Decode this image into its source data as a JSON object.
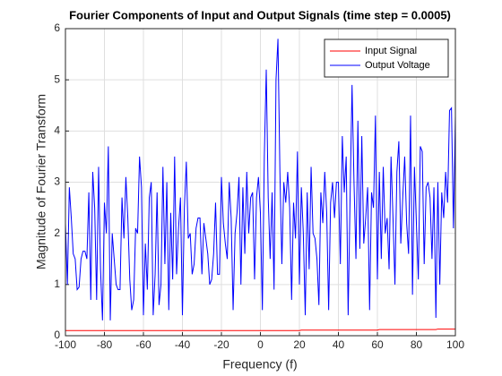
{
  "chart_data": {
    "type": "line",
    "title": "Fourier Components of Input and Output Signals (time step = 0.0005)",
    "xlabel": "Frequency (f)",
    "ylabel": "Magnitude of Fourier Transform",
    "x": [
      -100,
      -99,
      -98,
      -97,
      -96,
      -95,
      -94,
      -93,
      -92,
      -91,
      -90,
      -89,
      -88,
      -87,
      -86,
      -85,
      -84,
      -83,
      -82,
      -81,
      -80,
      -79,
      -78,
      -77,
      -76,
      -75,
      -74,
      -73,
      -72,
      -71,
      -70,
      -69,
      -68,
      -67,
      -66,
      -65,
      -64,
      -63,
      -62,
      -61,
      -60,
      -59,
      -58,
      -57,
      -56,
      -55,
      -54,
      -53,
      -52,
      -51,
      -50,
      -49,
      -48,
      -47,
      -46,
      -45,
      -44,
      -43,
      -42,
      -41,
      -40,
      -39,
      -38,
      -37,
      -36,
      -35,
      -34,
      -33,
      -32,
      -31,
      -30,
      -29,
      -28,
      -27,
      -26,
      -25,
      -24,
      -23,
      -22,
      -21,
      -20,
      -19,
      -18,
      -17,
      -16,
      -15,
      -14,
      -13,
      -12,
      -11,
      -10,
      -9,
      -8,
      -7,
      -6,
      -5,
      -4,
      -3,
      -2,
      -1,
      0,
      1,
      2,
      3,
      4,
      5,
      6,
      7,
      8,
      9,
      10,
      11,
      12,
      13,
      14,
      15,
      16,
      17,
      18,
      19,
      20,
      21,
      22,
      23,
      24,
      25,
      26,
      27,
      28,
      29,
      30,
      31,
      32,
      33,
      34,
      35,
      36,
      37,
      38,
      39,
      40,
      41,
      42,
      43,
      44,
      45,
      46,
      47,
      48,
      49,
      50,
      51,
      52,
      53,
      54,
      55,
      56,
      57,
      58,
      59,
      60,
      61,
      62,
      63,
      64,
      65,
      66,
      67,
      68,
      69,
      70,
      71,
      72,
      73,
      74,
      75,
      76,
      77,
      78,
      79,
      80,
      81,
      82,
      83,
      84,
      85,
      86,
      87,
      88,
      89,
      90,
      91,
      92,
      93,
      94,
      95,
      96,
      97,
      98,
      99,
      100
    ],
    "series": [
      {
        "name": "Input Signal",
        "color": "#ff0000",
        "values": [
          0.1,
          0.1,
          0.1,
          0.1,
          0.1,
          0.1,
          0.1,
          0.1,
          0.1,
          0.1,
          0.1,
          0.1,
          0.1,
          0.1,
          0.1,
          0.1,
          0.1,
          0.1,
          0.1,
          0.1,
          0.1,
          0.1,
          0.1,
          0.1,
          0.1,
          0.1,
          0.1,
          0.1,
          0.1,
          0.1,
          0.1,
          0.1,
          0.1,
          0.1,
          0.1,
          0.1,
          0.1,
          0.1,
          0.1,
          0.1,
          0.1,
          0.1,
          0.1,
          0.1,
          0.1,
          0.1,
          0.1,
          0.1,
          0.1,
          0.1,
          0.1,
          0.1,
          0.1,
          0.1,
          0.1,
          0.1,
          0.1,
          0.1,
          0.1,
          0.1,
          0.1,
          0.1,
          0.1,
          0.1,
          0.1,
          0.1,
          0.1,
          0.1,
          0.1,
          0.1,
          0.1,
          0.1,
          0.1,
          0.1,
          0.1,
          0.1,
          0.1,
          0.1,
          0.1,
          0.1,
          0.1,
          0.1,
          0.1,
          0.1,
          0.1,
          0.1,
          0.1,
          0.1,
          0.1,
          0.1,
          0.1,
          0.1,
          0.1,
          0.1,
          0.1,
          0.1,
          0.1,
          0.1,
          0.1,
          0.1,
          0.1,
          0.1,
          0.1,
          0.1,
          0.1,
          0.1,
          0.1,
          0.1,
          0.1,
          0.1,
          0.1,
          0.1,
          0.1,
          0.1,
          0.1,
          0.1,
          0.1,
          0.1,
          0.1,
          0.1,
          0.1,
          0.11,
          0.11,
          0.11,
          0.11,
          0.11,
          0.11,
          0.11,
          0.11,
          0.11,
          0.11,
          0.11,
          0.11,
          0.11,
          0.11,
          0.11,
          0.11,
          0.11,
          0.11,
          0.11,
          0.11,
          0.11,
          0.11,
          0.11,
          0.11,
          0.11,
          0.11,
          0.11,
          0.11,
          0.11,
          0.11,
          0.11,
          0.11,
          0.11,
          0.11,
          0.11,
          0.11,
          0.11,
          0.11,
          0.11,
          0.11,
          0.12,
          0.12,
          0.12,
          0.12,
          0.12,
          0.12,
          0.12,
          0.12,
          0.12,
          0.12,
          0.12,
          0.12,
          0.12,
          0.12,
          0.12,
          0.12,
          0.12,
          0.12,
          0.12,
          0.12,
          0.12,
          0.12,
          0.12,
          0.12,
          0.12,
          0.12,
          0.12,
          0.12,
          0.12,
          0.12,
          0.13,
          0.13,
          0.13,
          0.13,
          0.13,
          0.13,
          0.13,
          0.13,
          0.13,
          0.13
        ]
      },
      {
        "name": "Output Voltage",
        "color": "#0000ff",
        "values": [
          2.2,
          1.0,
          2.9,
          2.3,
          1.6,
          1.5,
          0.9,
          0.95,
          1.5,
          1.65,
          1.65,
          1.5,
          2.8,
          0.7,
          3.2,
          2.5,
          0.7,
          3.3,
          1.3,
          0.3,
          2.6,
          2.0,
          3.7,
          0.3,
          2.0,
          1.5,
          1.0,
          0.9,
          0.9,
          2.7,
          1.9,
          3.1,
          2.3,
          1.1,
          0.5,
          0.7,
          2.1,
          2.0,
          3.5,
          2.9,
          0.4,
          1.8,
          0.9,
          2.7,
          3.0,
          0.4,
          1.2,
          2.8,
          0.6,
          1.0,
          3.3,
          1.4,
          3.0,
          0.5,
          2.4,
          1.1,
          3.5,
          1.2,
          2.1,
          2.7,
          0.4,
          2.5,
          3.4,
          1.9,
          2.0,
          1.2,
          1.4,
          2.1,
          2.3,
          2.3,
          1.2,
          2.2,
          1.9,
          1.6,
          1.0,
          1.1,
          1.6,
          2.6,
          1.2,
          1.2,
          3.1,
          2.2,
          1.8,
          1.5,
          3.0,
          2.3,
          0.5,
          2.0,
          2.4,
          3.1,
          1.0,
          2.9,
          1.6,
          3.2,
          2.0,
          2.7,
          2.8,
          1.1,
          2.7,
          3.1,
          2.4,
          0.5,
          3.5,
          5.2,
          2.7,
          1.5,
          2.8,
          0.9,
          5.0,
          5.8,
          3.2,
          1.4,
          3.0,
          2.6,
          3.2,
          2.5,
          0.7,
          2.6,
          1.9,
          3.6,
          1.0,
          2.9,
          2.0,
          0.4,
          2.8,
          1.3,
          3.3,
          2.0,
          1.9,
          1.5,
          0.6,
          2.8,
          2.2,
          3.2,
          2.4,
          0.5,
          2.6,
          3.0,
          2.3,
          3.0,
          3.0,
          1.4,
          3.9,
          2.8,
          3.5,
          0.4,
          2.7,
          4.9,
          3.0,
          1.5,
          4.2,
          1.7,
          3.9,
          1.8,
          2.3,
          2.9,
          0.5,
          2.8,
          2.5,
          4.3,
          1.1,
          3.2,
          1.5,
          3.3,
          2.0,
          2.3,
          1.3,
          3.5,
          2.3,
          1.0,
          3.2,
          3.8,
          1.8,
          2.7,
          3.5,
          2.2,
          1.6,
          4.3,
          0.8,
          3.3,
          2.2,
          1.1,
          3.7,
          3.6,
          1.4,
          2.9,
          3.0,
          2.7,
          1.5,
          2.9,
          0.35,
          3.0,
          1.0,
          2.8,
          2.3,
          3.2,
          2.6,
          4.4,
          4.45,
          2.1,
          4.3
        ]
      }
    ],
    "xlim": [
      -100,
      100
    ],
    "xticks": [
      -100,
      -80,
      -60,
      -40,
      -20,
      0,
      20,
      40,
      60,
      80,
      100
    ],
    "ylim": [
      0,
      6
    ],
    "yticks": [
      0,
      1,
      2,
      3,
      4,
      5,
      6
    ],
    "grid": true,
    "legend": "northeast"
  }
}
